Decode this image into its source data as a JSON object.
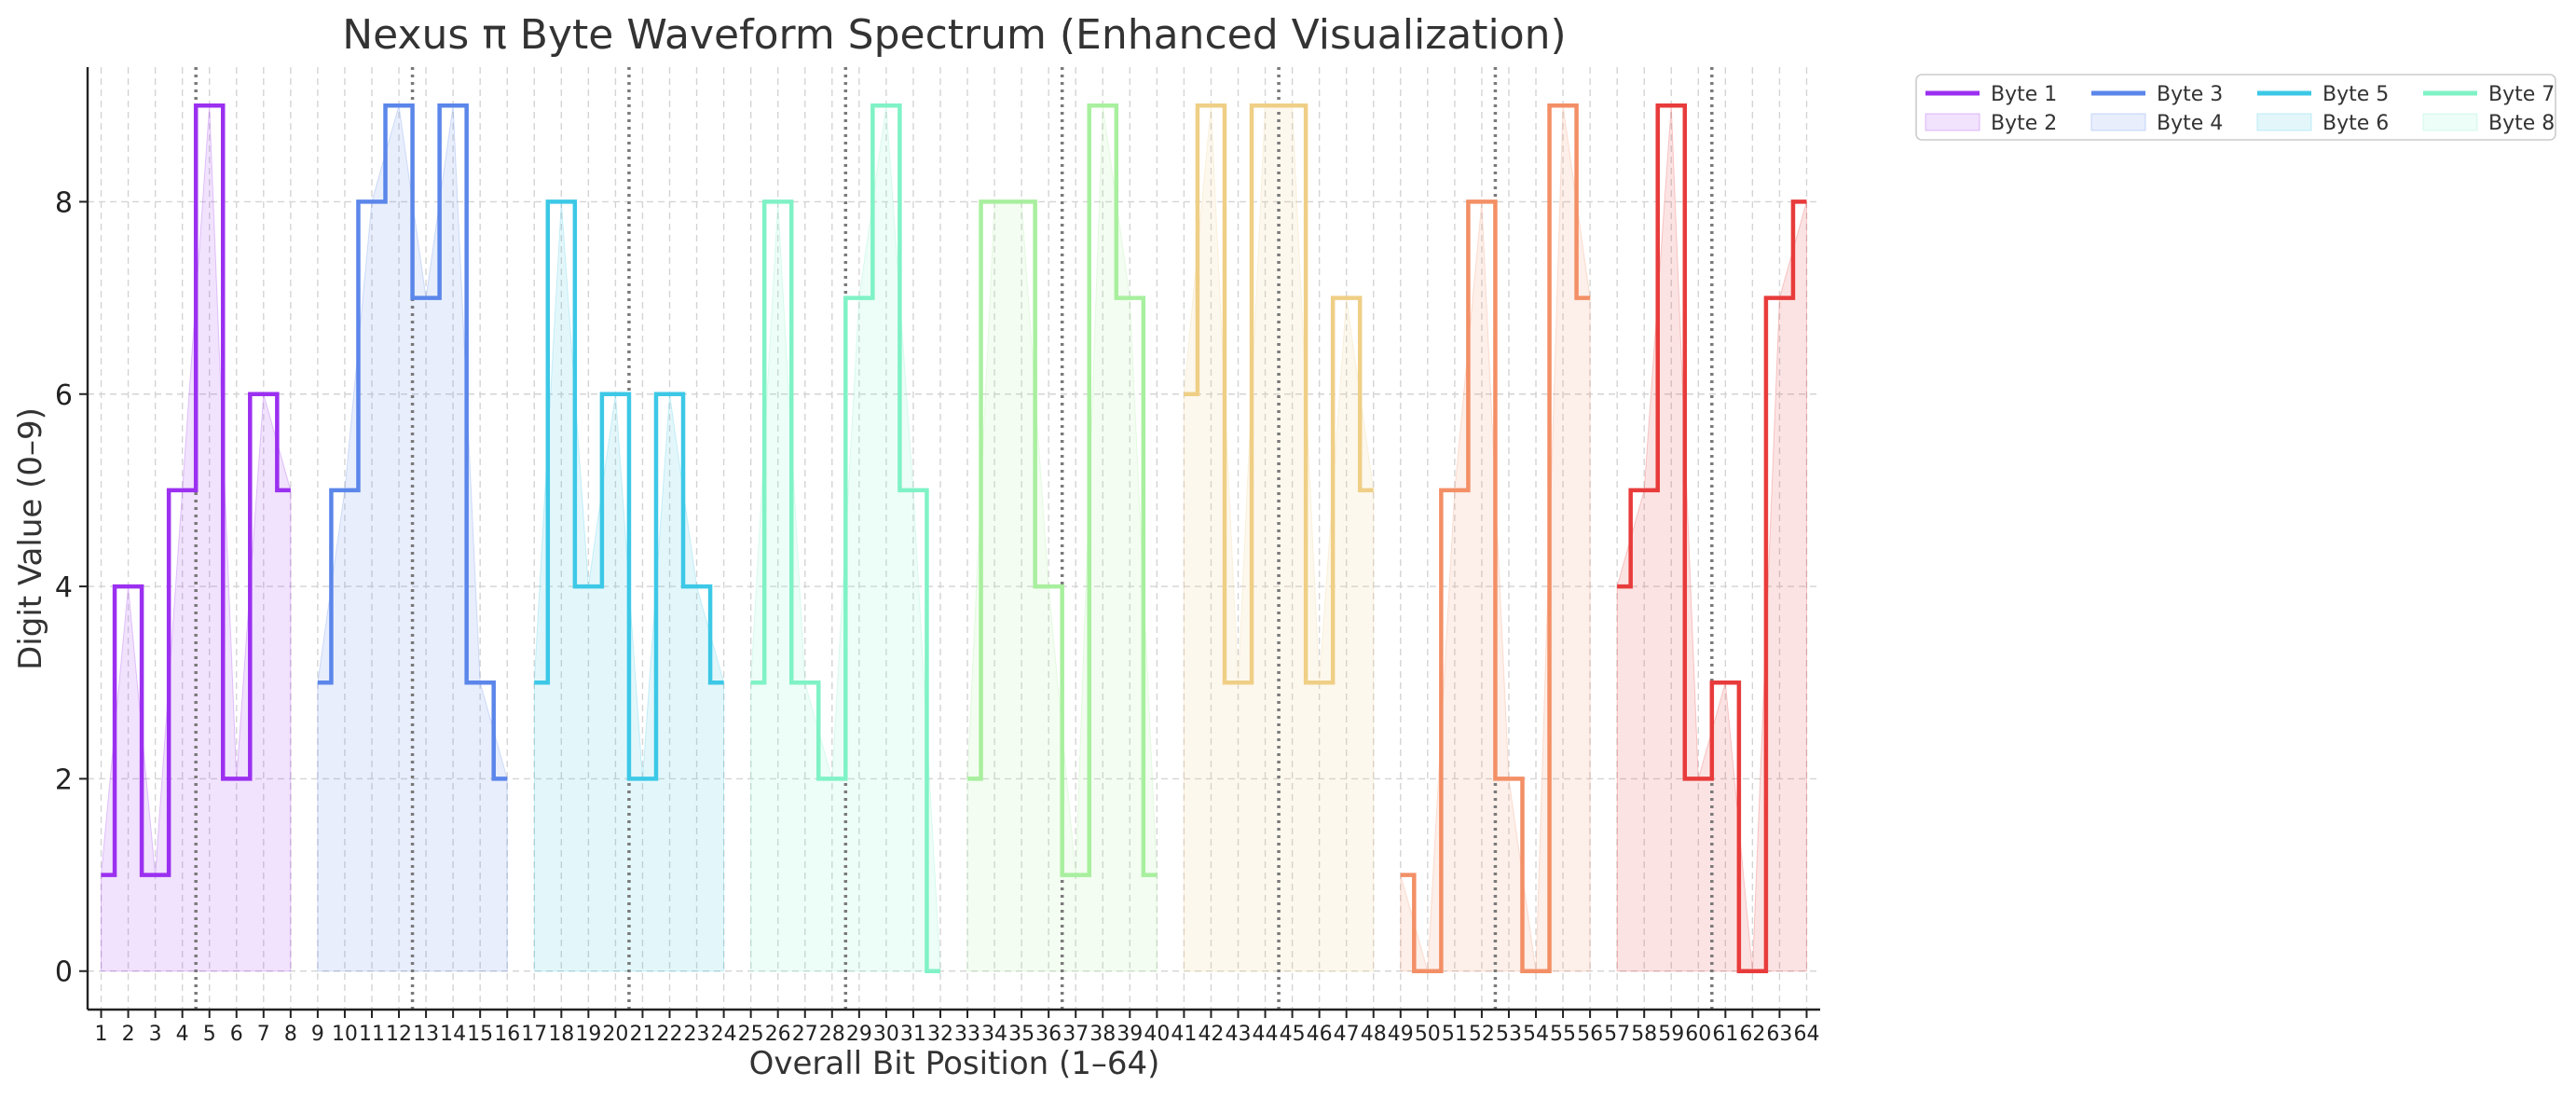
{
  "chart_data": {
    "type": "line",
    "title": "Nexus π Byte Waveform Spectrum (Enhanced Visualization)",
    "xlabel": "Overall Bit Position (1–64)",
    "ylabel": "Digit Value (0–9)",
    "xlim": [
      0.5,
      64.5
    ],
    "ylim": [
      -0.4,
      9.4
    ],
    "y_ticks": [
      0,
      2,
      4,
      6,
      8
    ],
    "x_ticks": [
      1,
      2,
      3,
      4,
      5,
      6,
      7,
      8,
      9,
      10,
      11,
      12,
      13,
      14,
      15,
      16,
      17,
      18,
      19,
      20,
      21,
      22,
      23,
      24,
      25,
      26,
      27,
      28,
      29,
      30,
      31,
      32,
      33,
      34,
      35,
      36,
      37,
      38,
      39,
      40,
      41,
      42,
      43,
      44,
      45,
      46,
      47,
      48,
      49,
      50,
      51,
      52,
      53,
      54,
      55,
      56,
      57,
      58,
      59,
      60,
      61,
      62,
      63,
      64
    ],
    "grid": true,
    "step_style": "mid",
    "vertical_markers": [
      4.5,
      12.5,
      20.5,
      28.5,
      36.5,
      44.5,
      52.5,
      60.5
    ],
    "legend": {
      "position": "outside-top-right",
      "columns": 4,
      "entries": [
        {
          "label": "Byte 1",
          "style": "line",
          "color": "#9b30f0"
        },
        {
          "label": "Byte 2",
          "style": "patch",
          "color": "#9b30f0"
        },
        {
          "label": "Byte 3",
          "style": "line",
          "color": "#5b86ea"
        },
        {
          "label": "Byte 4",
          "style": "patch",
          "color": "#5b86ea"
        },
        {
          "label": "Byte 5",
          "style": "line",
          "color": "#3cc8e6"
        },
        {
          "label": "Byte 6",
          "style": "patch",
          "color": "#3cc8e6"
        },
        {
          "label": "Byte 7",
          "style": "line",
          "color": "#7ff2c6"
        },
        {
          "label": "Byte 8",
          "style": "patch",
          "color": "#7ff2c6"
        }
      ]
    },
    "series": [
      {
        "name": "Byte 1",
        "color": "#9b30f0",
        "x": [
          1,
          2,
          3,
          4,
          5,
          6,
          7,
          8
        ],
        "values": [
          1,
          4,
          1,
          5,
          9,
          2,
          6,
          5
        ]
      },
      {
        "color": "#5b86ea",
        "x": [
          9,
          10,
          11,
          12,
          13,
          14,
          15,
          16
        ],
        "values": [
          3,
          5,
          8,
          9,
          7,
          9,
          3,
          2
        ]
      },
      {
        "color": "#3cc8e6",
        "x": [
          17,
          18,
          19,
          20,
          21,
          22,
          23,
          24
        ],
        "values": [
          3,
          8,
          4,
          6,
          2,
          6,
          4,
          3
        ]
      },
      {
        "color": "#7ff2c6",
        "x": [
          25,
          26,
          27,
          28,
          29,
          30,
          31,
          32
        ],
        "values": [
          3,
          8,
          3,
          2,
          7,
          9,
          5,
          0
        ]
      },
      {
        "color": "#a8ef9e",
        "x": [
          33,
          34,
          35,
          36,
          37,
          38,
          39,
          40
        ],
        "values": [
          2,
          8,
          8,
          4,
          1,
          9,
          7,
          1
        ]
      },
      {
        "color": "#efcf86",
        "x": [
          41,
          42,
          43,
          44,
          45,
          46,
          47,
          48
        ],
        "values": [
          6,
          9,
          3,
          9,
          9,
          3,
          7,
          5
        ]
      },
      {
        "color": "#f38f66",
        "x": [
          49,
          50,
          51,
          52,
          53,
          54,
          55,
          56
        ],
        "values": [
          1,
          0,
          5,
          8,
          2,
          0,
          9,
          7
        ]
      },
      {
        "color": "#e83b3b",
        "x": [
          57,
          58,
          59,
          60,
          61,
          62,
          63,
          64
        ],
        "values": [
          4,
          5,
          9,
          2,
          3,
          0,
          7,
          8
        ]
      }
    ]
  }
}
